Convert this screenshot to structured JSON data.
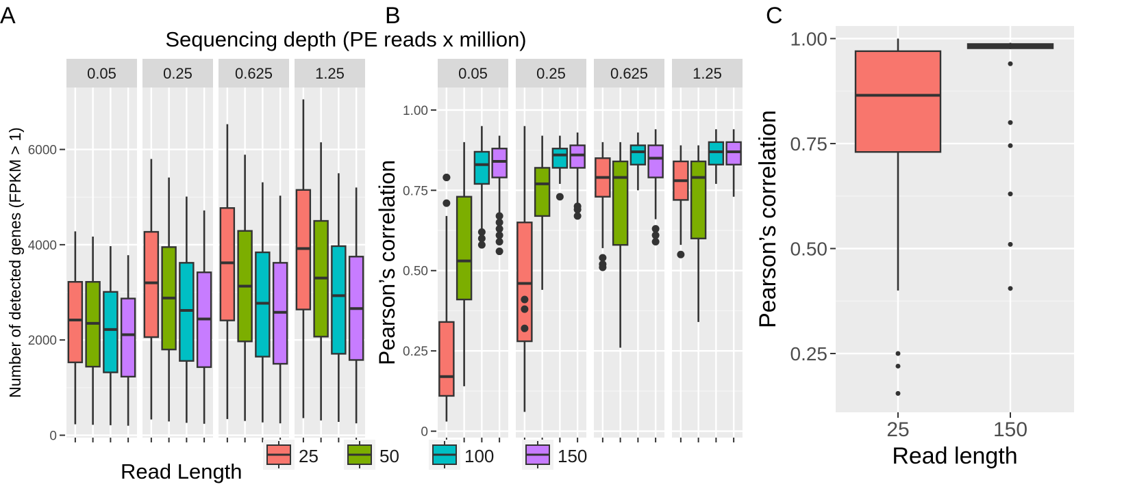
{
  "figure": {
    "panel_letters": [
      "A",
      "B",
      "C"
    ],
    "depth_title": "Sequencing depth (PE reads x million)",
    "legend": {
      "title": "Read Length",
      "items": [
        {
          "label": "25",
          "color": "#F8766D"
        },
        {
          "label": "50",
          "color": "#7CAE00"
        },
        {
          "label": "100",
          "color": "#00BFC4"
        },
        {
          "label": "150",
          "color": "#C77CFF"
        }
      ]
    }
  },
  "chart_data": [
    {
      "id": "A",
      "type": "box",
      "title": "",
      "subtitle": "Sequencing depth (PE reads x million)",
      "xlabel": "",
      "ylabel": "Number of detected genes (FPKM > 1)",
      "ylim": [
        -50,
        7300
      ],
      "yticks": [
        0,
        2000,
        4000,
        6000
      ],
      "ytick_labels": [
        "0",
        "2000",
        "4000",
        "6000"
      ],
      "grid": true,
      "legend_position": "bottom",
      "facets": [
        {
          "label": "0.05",
          "boxes": [
            {
              "group": "25",
              "whislo": 230,
              "q1": 1530,
              "med": 2420,
              "q3": 3220,
              "whishi": 4280,
              "outliers": []
            },
            {
              "group": "50",
              "whislo": 220,
              "q1": 1440,
              "med": 2350,
              "q3": 3220,
              "whishi": 4170,
              "outliers": []
            },
            {
              "group": "100",
              "whislo": 210,
              "q1": 1320,
              "med": 2220,
              "q3": 3010,
              "whishi": 3970,
              "outliers": []
            },
            {
              "group": "150",
              "whislo": 200,
              "q1": 1230,
              "med": 2110,
              "q3": 2870,
              "whishi": 3780,
              "outliers": []
            }
          ]
        },
        {
          "label": "0.25",
          "boxes": [
            {
              "group": "25",
              "whislo": 330,
              "q1": 2060,
              "med": 3200,
              "q3": 4270,
              "whishi": 5800,
              "outliers": []
            },
            {
              "group": "50",
              "whislo": 290,
              "q1": 1800,
              "med": 2880,
              "q3": 3950,
              "whishi": 5410,
              "outliers": []
            },
            {
              "group": "100",
              "whislo": 260,
              "q1": 1560,
              "med": 2620,
              "q3": 3620,
              "whishi": 5010,
              "outliers": []
            },
            {
              "group": "150",
              "whislo": 240,
              "q1": 1430,
              "med": 2440,
              "q3": 3420,
              "whishi": 4720,
              "outliers": []
            }
          ]
        },
        {
          "label": "0.625",
          "boxes": [
            {
              "group": "25",
              "whislo": 340,
              "q1": 2410,
              "med": 3620,
              "q3": 4770,
              "whishi": 6530,
              "outliers": []
            },
            {
              "group": "50",
              "whislo": 300,
              "q1": 1970,
              "med": 3130,
              "q3": 4290,
              "whishi": 5890,
              "outliers": []
            },
            {
              "group": "100",
              "whislo": 270,
              "q1": 1650,
              "med": 2770,
              "q3": 3840,
              "whishi": 5310,
              "outliers": []
            },
            {
              "group": "150",
              "whislo": 250,
              "q1": 1500,
              "med": 2580,
              "q3": 3620,
              "whishi": 5030,
              "outliers": []
            }
          ]
        },
        {
          "label": "1.25",
          "boxes": [
            {
              "group": "25",
              "whislo": 360,
              "q1": 2640,
              "med": 3920,
              "q3": 5150,
              "whishi": 7050,
              "outliers": []
            },
            {
              "group": "50",
              "whislo": 310,
              "q1": 2070,
              "med": 3300,
              "q3": 4500,
              "whishi": 6150,
              "outliers": []
            },
            {
              "group": "100",
              "whislo": 280,
              "q1": 1710,
              "med": 2930,
              "q3": 3970,
              "whishi": 5500,
              "outliers": []
            },
            {
              "group": "150",
              "whislo": 250,
              "q1": 1580,
              "med": 2660,
              "q3": 3750,
              "whishi": 5200,
              "outliers": []
            }
          ]
        }
      ]
    },
    {
      "id": "B",
      "type": "box",
      "title": "",
      "xlabel": "",
      "ylabel": "Pearson’s correlation",
      "ylim": [
        -0.02,
        1.07
      ],
      "yticks": [
        0,
        0.25,
        0.5,
        0.75,
        1.0
      ],
      "ytick_labels": [
        "0",
        "0.25",
        "0.50",
        "0.75",
        "1.00"
      ],
      "grid": true,
      "legend_position": "bottom",
      "facets": [
        {
          "label": "0.05",
          "boxes": [
            {
              "group": "25",
              "whislo": 0.03,
              "q1": 0.11,
              "med": 0.17,
              "q3": 0.34,
              "whishi": 0.67,
              "outliers": [
                0.71,
                0.79,
                0.79
              ]
            },
            {
              "group": "50",
              "whislo": 0.14,
              "q1": 0.41,
              "med": 0.53,
              "q3": 0.73,
              "whishi": 0.9,
              "outliers": []
            },
            {
              "group": "100",
              "whislo": 0.63,
              "q1": 0.77,
              "med": 0.83,
              "q3": 0.87,
              "whishi": 0.95,
              "outliers": [
                0.62,
                0.6,
                0.58
              ]
            },
            {
              "group": "150",
              "whislo": 0.68,
              "q1": 0.79,
              "med": 0.84,
              "q3": 0.88,
              "whishi": 0.92,
              "outliers": [
                0.67,
                0.65,
                0.63,
                0.61,
                0.59,
                0.56
              ]
            }
          ]
        },
        {
          "label": "0.25",
          "boxes": [
            {
              "group": "25",
              "whislo": 0.06,
              "q1": 0.28,
              "med": 0.46,
              "q3": 0.65,
              "whishi": 0.95,
              "outliers": [
                0.41,
                0.38,
                0.32
              ]
            },
            {
              "group": "50",
              "whislo": 0.44,
              "q1": 0.67,
              "med": 0.77,
              "q3": 0.82,
              "whishi": 0.92,
              "outliers": []
            },
            {
              "group": "100",
              "whislo": 0.77,
              "q1": 0.82,
              "med": 0.86,
              "q3": 0.88,
              "whishi": 0.92,
              "outliers": [
                0.73
              ]
            },
            {
              "group": "150",
              "whislo": 0.71,
              "q1": 0.82,
              "med": 0.86,
              "q3": 0.89,
              "whishi": 0.93,
              "outliers": [
                0.7,
                0.69,
                0.67
              ]
            }
          ]
        },
        {
          "label": "0.625",
          "boxes": [
            {
              "group": "25",
              "whislo": 0.57,
              "q1": 0.73,
              "med": 0.79,
              "q3": 0.85,
              "whishi": 0.9,
              "outliers": [
                0.54,
                0.52,
                0.51
              ]
            },
            {
              "group": "50",
              "whislo": 0.26,
              "q1": 0.58,
              "med": 0.79,
              "q3": 0.84,
              "whishi": 0.9,
              "outliers": []
            },
            {
              "group": "100",
              "whislo": 0.75,
              "q1": 0.83,
              "med": 0.87,
              "q3": 0.89,
              "whishi": 0.93,
              "outliers": []
            },
            {
              "group": "150",
              "whislo": 0.66,
              "q1": 0.79,
              "med": 0.85,
              "q3": 0.89,
              "whishi": 0.94,
              "outliers": [
                0.63,
                0.61,
                0.59
              ]
            }
          ]
        },
        {
          "label": "1.25",
          "boxes": [
            {
              "group": "25",
              "whislo": 0.58,
              "q1": 0.72,
              "med": 0.78,
              "q3": 0.84,
              "whishi": 0.89,
              "outliers": [
                0.55
              ]
            },
            {
              "group": "50",
              "whislo": 0.34,
              "q1": 0.6,
              "med": 0.79,
              "q3": 0.84,
              "whishi": 0.89,
              "outliers": []
            },
            {
              "group": "100",
              "whislo": 0.77,
              "q1": 0.83,
              "med": 0.87,
              "q3": 0.9,
              "whishi": 0.94,
              "outliers": []
            },
            {
              "group": "150",
              "whislo": 0.73,
              "q1": 0.83,
              "med": 0.87,
              "q3": 0.9,
              "whishi": 0.94,
              "outliers": []
            }
          ]
        }
      ]
    },
    {
      "id": "C",
      "type": "box",
      "title": "",
      "xlabel": "Read length",
      "ylabel": "Pearson’s correlation",
      "ylim": [
        0.11,
        1.03
      ],
      "yticks": [
        0.25,
        0.5,
        0.75,
        1.0
      ],
      "ytick_labels": [
        "0.25",
        "0.50",
        "0.75",
        "1.00"
      ],
      "grid": true,
      "categories": [
        "25",
        "150"
      ],
      "boxes": [
        {
          "group": "25",
          "color": "#F8766D",
          "whislo": 0.4,
          "q1": 0.73,
          "med": 0.865,
          "q3": 0.97,
          "whishi": 1.0,
          "outliers": [
            0.25,
            0.22,
            0.155
          ]
        },
        {
          "group": "150",
          "color": "#3a3a3a",
          "whislo": 0.975,
          "q1": 0.977,
          "med": 0.982,
          "q3": 0.987,
          "whishi": 0.99,
          "outliers": [
            0.94,
            0.8,
            0.745,
            0.63,
            0.51,
            0.405
          ]
        }
      ]
    }
  ]
}
